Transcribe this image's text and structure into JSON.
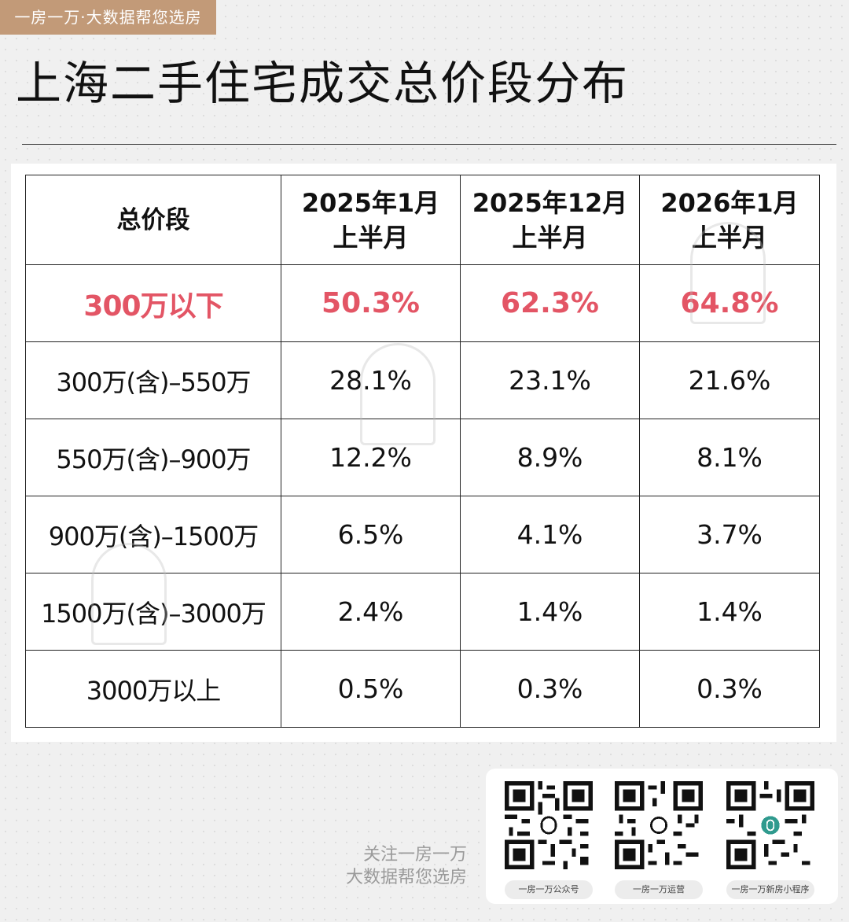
{
  "brand_tag": "一房一万·大数据帮您选房",
  "title": "上海二手住宅成交总价段分布",
  "table": {
    "headers": [
      {
        "line1": "总价段",
        "line2": ""
      },
      {
        "line1": "2025年1月",
        "line2": "上半月"
      },
      {
        "line1": "2025年12月",
        "line2": "上半月"
      },
      {
        "line1": "2026年1月",
        "line2": "上半月"
      }
    ],
    "rows": [
      {
        "label": "300万以下",
        "values": [
          "50.3%",
          "62.3%",
          "64.8%"
        ],
        "highlight": true
      },
      {
        "label": "300万(含)–550万",
        "values": [
          "28.1%",
          "23.1%",
          "21.6%"
        ]
      },
      {
        "label": "550万(含)–900万",
        "values": [
          "12.2%",
          "8.9%",
          "8.1%"
        ]
      },
      {
        "label": "900万(含)–1500万",
        "values": [
          "6.5%",
          "4.1%",
          "3.7%"
        ]
      },
      {
        "label": "1500万(含)–3000万",
        "values": [
          "2.4%",
          "1.4%",
          "1.4%"
        ]
      },
      {
        "label": "3000万以上",
        "values": [
          "0.5%",
          "0.3%",
          "0.3%"
        ]
      }
    ]
  },
  "footer": {
    "line1": "关注一房一万",
    "line2": "大数据帮您选房",
    "qrcodes": [
      {
        "label": "一房一万公众号",
        "icon": "logo-icon"
      },
      {
        "label": "一房一万运营",
        "icon": "wechat-icon"
      },
      {
        "label": "一房一万新房小程序",
        "icon": "logo-icon"
      }
    ]
  },
  "colors": {
    "brand": "#c29a78",
    "highlight": "#e35565",
    "logo_teal": "#2f9a8e"
  }
}
